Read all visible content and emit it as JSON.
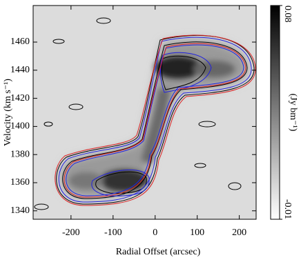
{
  "chart_data": {
    "type": "image",
    "x_label": "Radial Offset (arcsec)",
    "y_label": "Velocity (km s⁻¹)",
    "xlim": [
      -290,
      240
    ],
    "xticks": [
      -200,
      -100,
      0,
      100,
      200
    ],
    "ylim": [
      1334,
      1486
    ],
    "yticks": [
      1340,
      1360,
      1380,
      1400,
      1420,
      1440,
      1460
    ],
    "colorbar": {
      "label": "(Jy bm⁻¹)",
      "lim": [
        -0.01,
        0.08
      ],
      "ticks": [
        -0.01,
        0.08
      ],
      "colors": [
        "#ffffff",
        "#000000"
      ]
    }
  }
}
